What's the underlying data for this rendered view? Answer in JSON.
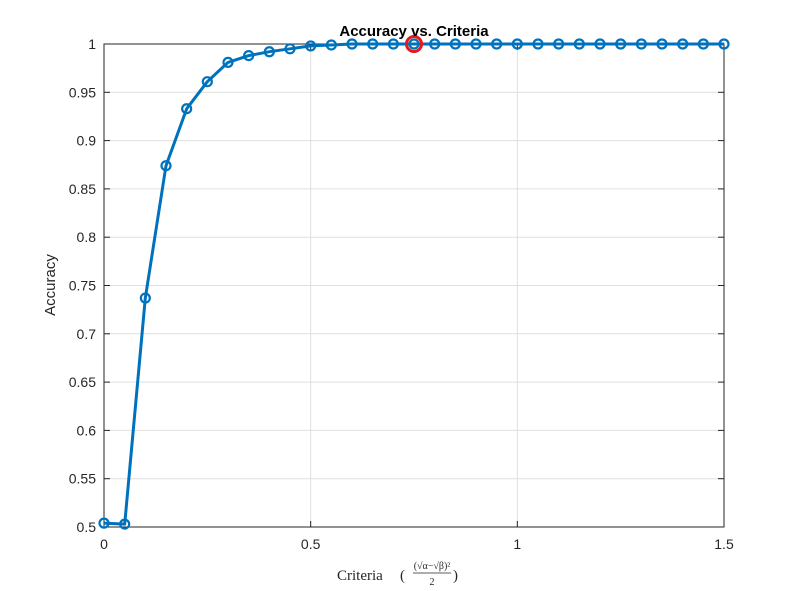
{
  "chart_data": {
    "type": "line",
    "title": "Accuracy vs. Criteria",
    "xlabel": {
      "prefix": "Criteria",
      "formula_numerator": "(√α−√β)²",
      "formula_denominator": "2"
    },
    "ylabel": "Accuracy",
    "xlim": [
      0,
      1.5
    ],
    "ylim": [
      0.5,
      1
    ],
    "xticks": [
      0,
      0.5,
      1,
      1.5
    ],
    "xtick_labels": [
      "0",
      "0.5",
      "1",
      "1.5"
    ],
    "yticks": [
      0.5,
      0.55,
      0.6,
      0.65,
      0.7,
      0.75,
      0.8,
      0.85,
      0.9,
      0.95,
      1
    ],
    "ytick_labels": [
      "0.5",
      "0.55",
      "0.6",
      "0.65",
      "0.7",
      "0.75",
      "0.8",
      "0.85",
      "0.9",
      "0.95",
      "1"
    ],
    "grid": true,
    "series": [
      {
        "x": [
          0,
          0.05,
          0.1,
          0.15,
          0.2,
          0.25,
          0.3,
          0.35,
          0.4,
          0.45,
          0.5,
          0.55,
          0.6,
          0.65,
          0.7,
          0.75,
          0.8,
          0.85,
          0.9,
          0.95,
          1.0,
          1.05,
          1.1,
          1.15,
          1.2,
          1.25,
          1.3,
          1.35,
          1.4,
          1.45,
          1.5
        ],
        "y": [
          0.504,
          0.503,
          0.737,
          0.874,
          0.933,
          0.961,
          0.981,
          0.988,
          0.992,
          0.995,
          0.998,
          0.999,
          1.0,
          1.0,
          1.0,
          1.0,
          1.0,
          1.0,
          1.0,
          1.0,
          1.0,
          1.0,
          1.0,
          1.0,
          1.0,
          1.0,
          1.0,
          1.0,
          1.0,
          1.0,
          1.0
        ],
        "color": "#0072BD"
      }
    ],
    "highlight": {
      "x": 0.75,
      "y": 1.0,
      "color": "#E41A1C"
    }
  }
}
